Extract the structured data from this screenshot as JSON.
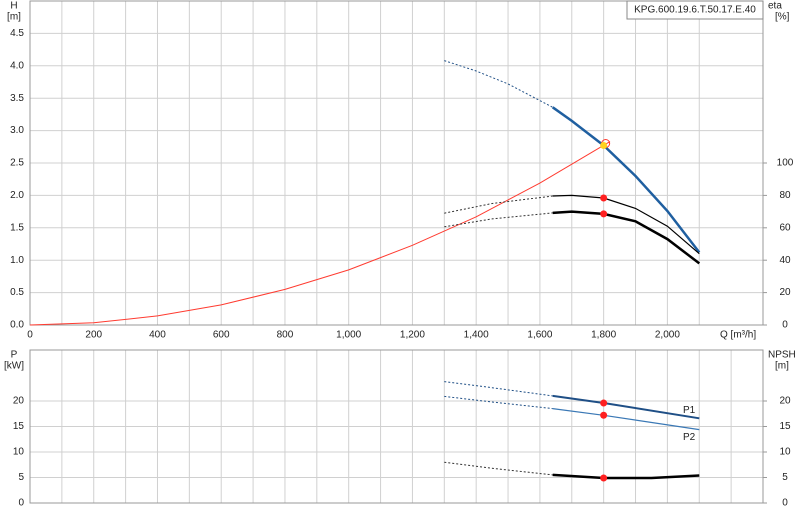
{
  "chart_data": [
    {
      "type": "line",
      "title": "KPG.600.19.6.T.50.17.E.40",
      "x_label": "Q [m³/h]",
      "y_label": "H",
      "y_unit": "[m]",
      "y2_label": "eta",
      "y2_unit": "[%]",
      "xlim": [
        0,
        2300
      ],
      "xticks": [
        0,
        200,
        400,
        600,
        800,
        {
          "value": 1000,
          "label": "1,000"
        },
        {
          "value": 1200,
          "label": "1,200"
        },
        {
          "value": 1400,
          "label": "1,400"
        },
        {
          "value": 1600,
          "label": "1,600"
        },
        {
          "value": 1800,
          "label": "1,800"
        },
        {
          "value": 2000,
          "label": "2,000"
        }
      ],
      "x_minor_ticks": [
        100,
        300,
        500,
        700,
        900,
        1100,
        1300,
        1500,
        1700,
        1900,
        2100,
        2300
      ],
      "ylim": [
        0,
        5
      ],
      "yticks": [
        {
          "value": 0,
          "label": "0.0"
        },
        0.5,
        {
          "value": 1,
          "label": "1.0"
        },
        1.5,
        {
          "value": 2,
          "label": "2.0"
        },
        2.5,
        {
          "value": 3,
          "label": "3.0"
        },
        3.5,
        {
          "value": 4,
          "label": "4.0"
        },
        4.5
      ],
      "y2lim": [
        0,
        200
      ],
      "y2ticks": [
        0,
        20,
        40,
        60,
        80,
        100
      ],
      "grid": true,
      "series": [
        {
          "x": [
            0,
            200,
            400,
            600,
            800,
            1000,
            1200,
            1400,
            1600,
            1820
          ],
          "values": [
            0,
            0.034,
            0.14,
            0.31,
            0.55,
            0.85,
            1.23,
            1.67,
            2.19,
            2.83
          ],
          "color": "#ff3b30",
          "width": 1,
          "style": "solid"
        },
        {
          "x": [
            1300,
            1400,
            1500,
            1640
          ],
          "values": [
            4.08,
            3.92,
            3.72,
            3.36
          ],
          "color": "#1f4f86",
          "width": 1,
          "style": "dotted"
        },
        {
          "x": [
            1640,
            1700,
            1800,
            1900,
            2000,
            2100
          ],
          "values": [
            3.36,
            3.15,
            2.77,
            2.3,
            1.76,
            1.12
          ],
          "color": "#1f5fa0",
          "width": 2.5,
          "style": "solid"
        },
        {
          "x": [
            1300,
            1450,
            1640
          ],
          "values": [
            69,
            75,
            79.6
          ],
          "color": "#333333",
          "width": 1,
          "style": "dotted",
          "axis": "y2"
        },
        {
          "x": [
            1640,
            1700,
            1800,
            1900,
            2000,
            2100
          ],
          "values": [
            79.6,
            80,
            78.4,
            72,
            61,
            44
          ],
          "color": "#000000",
          "width": 1.2,
          "style": "solid",
          "axis": "y2"
        },
        {
          "x": [
            1300,
            1450,
            1640
          ],
          "values": [
            60.6,
            65.5,
            69.2
          ],
          "color": "#333333",
          "width": 1,
          "style": "dotted",
          "axis": "y2"
        },
        {
          "x": [
            1640,
            1700,
            1800,
            1900,
            2000,
            2100
          ],
          "values": [
            69.2,
            70,
            68.6,
            64,
            53,
            38
          ],
          "color": "#000000",
          "width": 2.5,
          "style": "solid",
          "axis": "y2"
        }
      ],
      "points": [
        {
          "x": 1800,
          "y": 2.77,
          "color": "#ffd21f",
          "stroke": "#ff3b30"
        },
        {
          "x": 1800,
          "y": 78.4,
          "color": "#ff2020",
          "axis": "y2"
        },
        {
          "x": 1800,
          "y": 68.6,
          "color": "#ff2020",
          "axis": "y2"
        }
      ]
    },
    {
      "type": "line",
      "y_label": "P",
      "y_unit": "[kW]",
      "y2_label": "NPSH",
      "y2_unit": "[m]",
      "xlim": [
        0,
        2300
      ],
      "x_grid": [
        0,
        100,
        200,
        300,
        400,
        500,
        600,
        700,
        800,
        900,
        1000,
        1100,
        1200,
        1300,
        1400,
        1500,
        1600,
        1700,
        1800,
        1900,
        2000,
        2100,
        2200,
        2300
      ],
      "ylim": [
        0,
        30
      ],
      "yticks": [
        0,
        5,
        10,
        15,
        20
      ],
      "y2lim": [
        0,
        30
      ],
      "y2ticks": [
        0,
        5,
        10,
        15,
        20
      ],
      "grid": true,
      "series": [
        {
          "x": [
            1300,
            1450,
            1640
          ],
          "values": [
            23.8,
            22.6,
            21.0
          ],
          "color": "#1f4f86",
          "width": 1,
          "style": "dotted"
        },
        {
          "name": "P1",
          "x": [
            1640,
            1800,
            2100
          ],
          "values": [
            21.0,
            19.6,
            16.6
          ],
          "color": "#1f4f86",
          "width": 2,
          "style": "solid"
        },
        {
          "x": [
            1300,
            1450,
            1640
          ],
          "values": [
            20.9,
            19.8,
            18.5
          ],
          "color": "#1f4f86",
          "width": 1,
          "style": "dotted"
        },
        {
          "name": "P2",
          "x": [
            1640,
            1800,
            2100
          ],
          "values": [
            18.5,
            17.2,
            14.4
          ],
          "color": "#3a78b5",
          "width": 1.2,
          "style": "solid"
        },
        {
          "x": [
            1300,
            1450,
            1640
          ],
          "values": [
            8.0,
            6.8,
            5.5
          ],
          "color": "#333333",
          "width": 1,
          "style": "dotted",
          "axis": "y2"
        },
        {
          "x": [
            1640,
            1800,
            1950,
            2100
          ],
          "values": [
            5.5,
            4.9,
            4.9,
            5.4
          ],
          "color": "#000000",
          "width": 2.5,
          "style": "solid",
          "axis": "y2"
        }
      ],
      "points": [
        {
          "x": 1800,
          "y": 19.6,
          "color": "#ff2020"
        },
        {
          "x": 1800,
          "y": 17.2,
          "color": "#ff2020"
        },
        {
          "x": 1800,
          "y": 4.9,
          "color": "#ff2020",
          "axis": "y2"
        }
      ]
    }
  ]
}
